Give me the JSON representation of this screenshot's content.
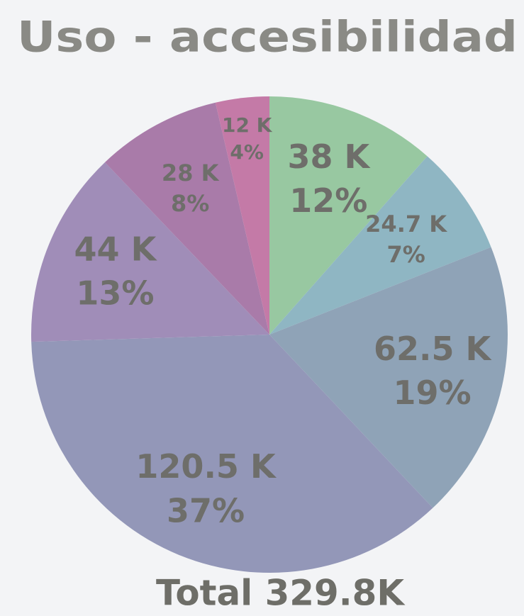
{
  "chart_data": {
    "type": "pie",
    "title": "Uso - accesibilidad",
    "values": [
      38,
      24.7,
      62.5,
      120.5,
      44,
      28,
      12
    ],
    "value_labels": [
      "38 K",
      "24.7 K",
      "62.5 K",
      "120.5 K",
      "44 K",
      "28 K",
      "12 K"
    ],
    "percents": [
      12,
      7,
      19,
      37,
      13,
      8,
      4
    ],
    "percent_labels": [
      "12%",
      "7%",
      "19%",
      "37%",
      "13%",
      "8%",
      "4%"
    ],
    "colors": [
      "#98c8a1",
      "#8fb6c3",
      "#8fa3b7",
      "#9397b8",
      "#a08db8",
      "#a97ba9",
      "#c47aa7"
    ],
    "total_label": "Total 329.8K"
  }
}
